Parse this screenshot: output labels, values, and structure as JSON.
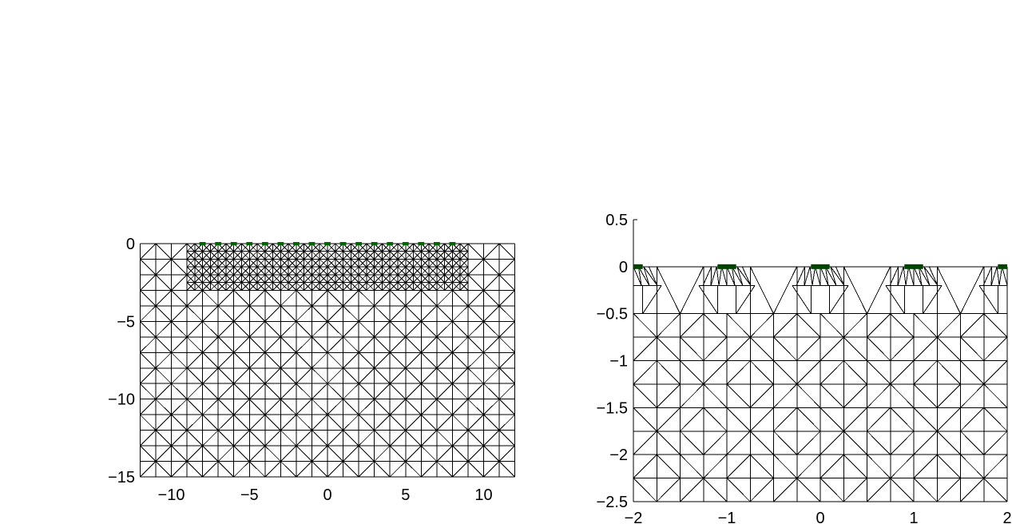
{
  "chart_data": [
    {
      "type": "mesh",
      "x_range": [
        -12,
        12
      ],
      "y_range": [
        -15,
        0
      ],
      "xticks": [
        -10,
        -5,
        0,
        5,
        10
      ],
      "xtick_labels": [
        "−10",
        "−5",
        "0",
        "5",
        "10"
      ],
      "yticks": [
        0,
        -5,
        -10,
        -15
      ],
      "ytick_labels": [
        "0",
        "−5",
        "−10",
        "−15"
      ],
      "coarse_region": {
        "x": [
          -12,
          12
        ],
        "y": [
          -15,
          0
        ],
        "cell_size": 1
      },
      "refined_region": {
        "x": [
          -9,
          9
        ],
        "y": [
          -3,
          0
        ],
        "cell_size": 0.5
      },
      "electrodes": {
        "color": "#006600",
        "positions": [
          -8,
          -7,
          -6,
          -5,
          -4,
          -3,
          -2,
          -1,
          0,
          1,
          2,
          3,
          4,
          5,
          6,
          7,
          8
        ],
        "width": 0.4
      }
    },
    {
      "type": "mesh",
      "x_range": [
        -2,
        2
      ],
      "y_range": [
        -2.5,
        0.5
      ],
      "xticks": [
        -2,
        -1,
        0,
        1,
        2
      ],
      "xtick_labels": [
        "−2",
        "−1",
        "0",
        "1",
        "2"
      ],
      "yticks": [
        0.5,
        0,
        -0.5,
        -1,
        -1.5,
        -2,
        -2.5
      ],
      "ytick_labels": [
        "0.5",
        "0",
        "−0.5",
        "−1",
        "−1.5",
        "−2",
        "−2.5"
      ],
      "mesh_top": 0,
      "cell_size": 0.25,
      "refined_band_depth": 0.5,
      "electrodes": {
        "color": "#004400",
        "positions": [
          -2,
          -1,
          0,
          1,
          2
        ],
        "width": 0.2
      }
    }
  ]
}
